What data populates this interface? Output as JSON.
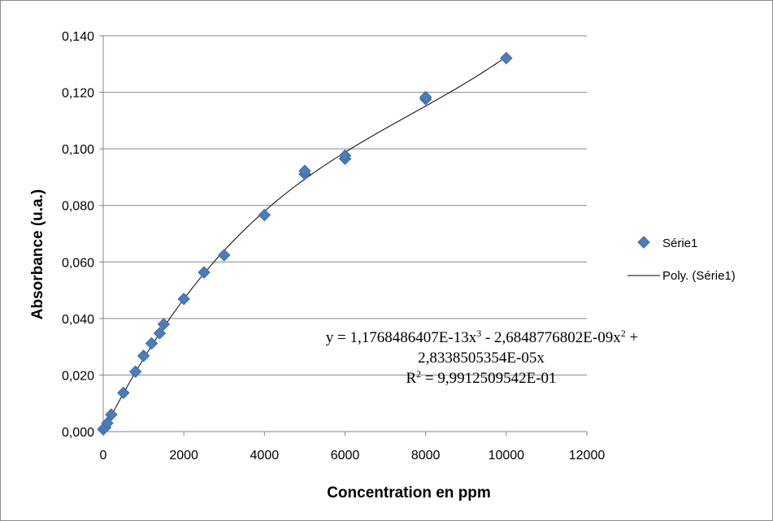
{
  "chart_data": {
    "type": "scatter",
    "title": "",
    "xlabel": "Concentration en ppm",
    "ylabel": "Absorbance (u.a.)",
    "xlim": [
      0,
      12000
    ],
    "ylim": [
      0,
      0.14
    ],
    "x_ticks": [
      "0",
      "2000",
      "4000",
      "6000",
      "8000",
      "10000",
      "12000"
    ],
    "y_ticks": [
      "0,000",
      "0,020",
      "0,040",
      "0,060",
      "0,080",
      "0,100",
      "0,120",
      "0,140"
    ],
    "grid": "horizontal",
    "legend_position": "right",
    "series": [
      {
        "name": "Série1",
        "marker": "diamond",
        "color": "#4a7ebb",
        "points": [
          {
            "x": 0,
            "y": 0.0008
          },
          {
            "x": 50,
            "y": 0.0015
          },
          {
            "x": 100,
            "y": 0.003
          },
          {
            "x": 200,
            "y": 0.006
          },
          {
            "x": 500,
            "y": 0.0137
          },
          {
            "x": 800,
            "y": 0.0212
          },
          {
            "x": 1000,
            "y": 0.0268
          },
          {
            "x": 1200,
            "y": 0.0312
          },
          {
            "x": 1400,
            "y": 0.0348
          },
          {
            "x": 1500,
            "y": 0.038
          },
          {
            "x": 2000,
            "y": 0.0469
          },
          {
            "x": 2500,
            "y": 0.0563
          },
          {
            "x": 3000,
            "y": 0.0624
          },
          {
            "x": 4000,
            "y": 0.0766
          },
          {
            "x": 5000,
            "y": 0.0911
          },
          {
            "x": 5000,
            "y": 0.0922
          },
          {
            "x": 6000,
            "y": 0.0965
          },
          {
            "x": 6000,
            "y": 0.0976
          },
          {
            "x": 8000,
            "y": 0.1176
          },
          {
            "x": 8000,
            "y": 0.1183
          },
          {
            "x": 10000,
            "y": 0.1321
          }
        ]
      },
      {
        "name": "Poly. (Série1)",
        "type": "trendline",
        "color": "#000000",
        "fit": {
          "a3": 1.1768486407e-13,
          "a2": -2.6848776802e-09,
          "a1": 2.8338505354e-05,
          "x_range": [
            0,
            10000
          ]
        }
      }
    ],
    "annotation": {
      "line1_parts": [
        "y = 1,1768486407E-13x",
        "3",
        " - 2,6848776802E-09x",
        "2",
        " +"
      ],
      "line2": "2,8338505354E-05x",
      "line3_parts": [
        "R",
        "2",
        " = 9,9912509542E-01"
      ]
    }
  }
}
